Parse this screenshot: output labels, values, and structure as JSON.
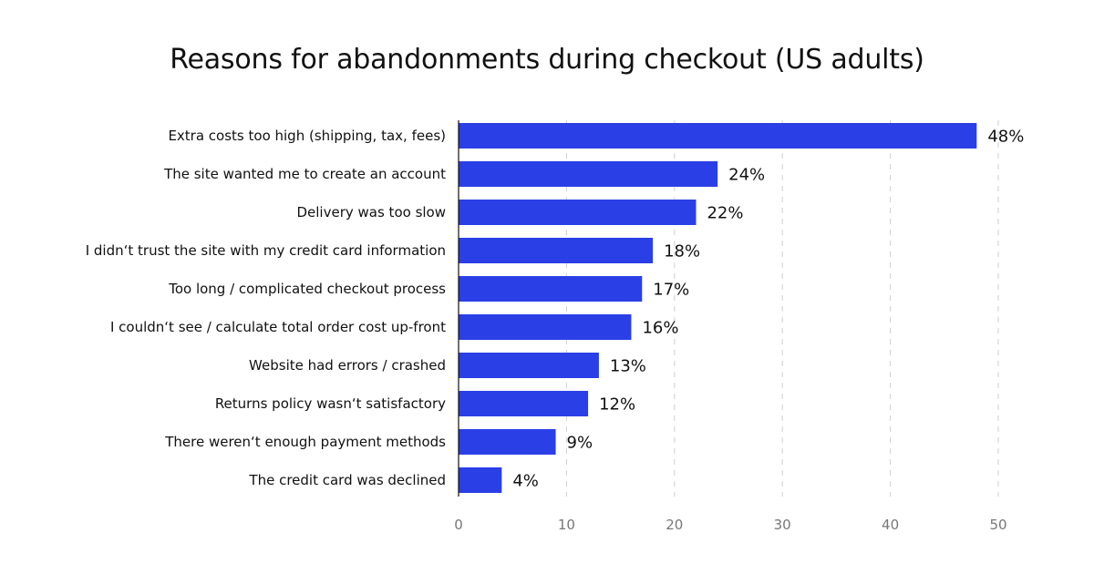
{
  "chart_data": {
    "type": "bar",
    "orientation": "horizontal",
    "title": "Reasons for abandonments during checkout (US adults)",
    "categories": [
      "Extra costs too  high (shipping, tax, fees)",
      "The site wanted me to create an account",
      "Delivery was too slow",
      "I didn‘t trust the site with my credit card information",
      "Too long / complicated checkout process",
      "I couldn‘t see / calculate total order cost up-front",
      "Website had errors / crashed",
      "Returns policy wasn‘t satisfactory",
      "There weren‘t enough payment methods",
      "The credit card was declined"
    ],
    "values": [
      48,
      24,
      22,
      18,
      17,
      16,
      13,
      12,
      9,
      4
    ],
    "value_labels": [
      "48%",
      "24%",
      "22%",
      "18%",
      "17%",
      "16%",
      "13%",
      "12%",
      "9%",
      "4%"
    ],
    "x_ticks": [
      0,
      10,
      20,
      30,
      40,
      50
    ],
    "xlim": [
      0,
      50
    ],
    "xlabel": "",
    "ylabel": "",
    "grid": true,
    "colors": {
      "bar": "#2a3fe6",
      "grid": "#cfcfcf",
      "tick_text": "#777777",
      "text": "#111111"
    }
  }
}
